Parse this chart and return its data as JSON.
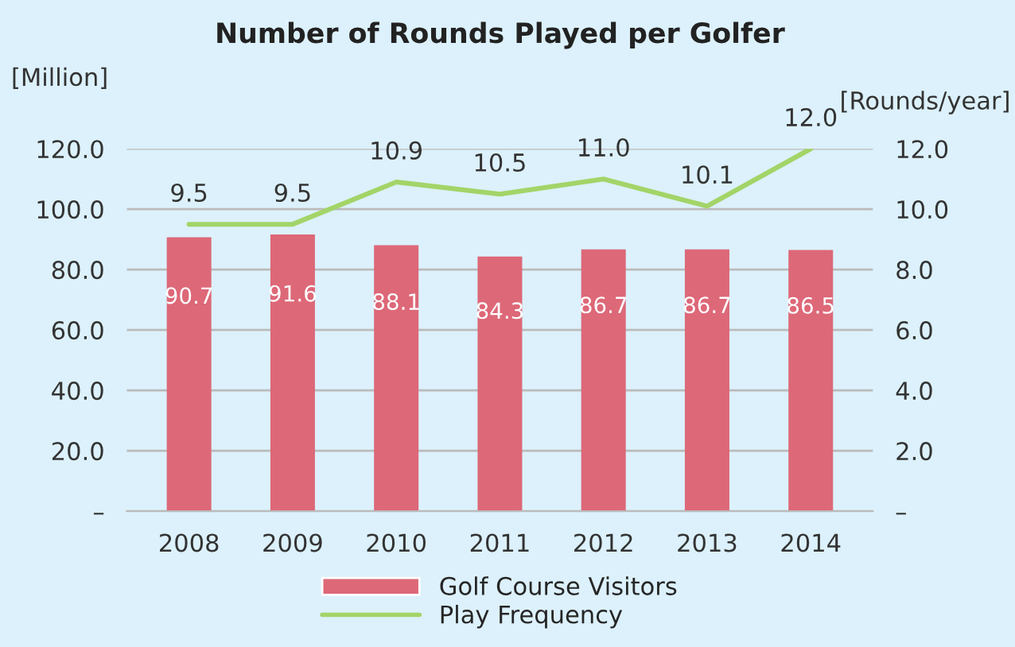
{
  "chart_data": {
    "type": "bar",
    "title": "Number of Rounds Played per Golfer",
    "ylabel": "[Million]",
    "y2label": "[Rounds/year]",
    "categories": [
      "2008",
      "2009",
      "2010",
      "2011",
      "2012",
      "2013",
      "2014"
    ],
    "series": [
      {
        "name": "Golf Course Visitors",
        "color": "#dd6878",
        "values": [
          90.7,
          91.6,
          88.1,
          84.3,
          86.7,
          86.7,
          86.5
        ]
      },
      {
        "name": "Play Frequency",
        "type": "line",
        "axis": "y2",
        "color": "#a3d468",
        "values": [
          9.5,
          9.5,
          10.9,
          10.5,
          11.0,
          10.1,
          12.0
        ],
        "value_labels": [
          "9.5",
          "9.5",
          "10.9",
          "10.5",
          "11.0",
          "10.1",
          "12.0"
        ]
      }
    ],
    "ylim": [
      0,
      120
    ],
    "yticks": [
      {
        "value": 0,
        "label": "–"
      },
      {
        "value": 20,
        "label": "20.0"
      },
      {
        "value": 40,
        "label": "40.0"
      },
      {
        "value": 60,
        "label": "60.0"
      },
      {
        "value": 80,
        "label": "80.0"
      },
      {
        "value": 100,
        "label": "100.0"
      },
      {
        "value": 120,
        "label": "120.0"
      }
    ],
    "y2lim": [
      0,
      12
    ],
    "y2ticks": [
      {
        "value": 0,
        "label": "–"
      },
      {
        "value": 2,
        "label": "2.0"
      },
      {
        "value": 4,
        "label": "4.0"
      },
      {
        "value": 6,
        "label": "6.0"
      },
      {
        "value": 8,
        "label": "8.0"
      },
      {
        "value": 10,
        "label": "10.0"
      },
      {
        "value": 12,
        "label": "12.0"
      }
    ],
    "grid": "y",
    "legend": "bottom",
    "data_labels": true,
    "marker": "none",
    "line_style": "solid"
  }
}
